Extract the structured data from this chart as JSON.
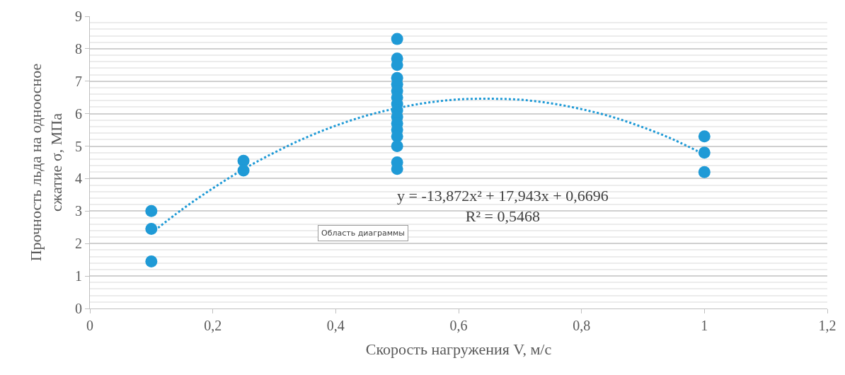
{
  "chart_data": {
    "type": "scatter",
    "xlabel": "Скорость нагружения V, м/с",
    "ylabel": "Прочность льда на одноосное\nсжатие σ, МПа",
    "xlim": [
      0,
      1.2
    ],
    "xticks": [
      {
        "value": 0,
        "label": "0"
      },
      {
        "value": 0.2,
        "label": "0,2"
      },
      {
        "value": 0.4,
        "label": "0,4"
      },
      {
        "value": 0.6,
        "label": "0,6"
      },
      {
        "value": 0.8,
        "label": "0,8"
      },
      {
        "value": 1,
        "label": "1"
      },
      {
        "value": 1.2,
        "label": "1,2"
      }
    ],
    "ylim": [
      0,
      9
    ],
    "yticks": [
      0,
      1,
      2,
      3,
      4,
      5,
      6,
      7,
      8,
      9
    ],
    "grid": "y",
    "marker": "circle",
    "series": [
      {
        "color": "#1f9ad6",
        "x": [
          0.1,
          0.1,
          0.1,
          0.25,
          0.25,
          0.5,
          0.5,
          0.5,
          0.5,
          0.5,
          0.5,
          0.5,
          0.5,
          0.5,
          0.5,
          0.5,
          0.5,
          0.5,
          0.5,
          0.5,
          0.5,
          1,
          1,
          1
        ],
        "values": [
          3.0,
          2.45,
          1.45,
          4.55,
          4.25,
          8.3,
          7.7,
          7.5,
          7.1,
          6.9,
          6.7,
          6.5,
          6.3,
          6.1,
          5.9,
          5.7,
          5.5,
          5.3,
          5.0,
          4.5,
          4.3,
          5.3,
          4.8,
          4.2
        ]
      },
      {
        "type": "line",
        "color": "#1f9ad6",
        "line_style": "dotted",
        "marker": "none",
        "x": [
          0.1,
          0.15,
          0.2,
          0.25,
          0.3,
          0.35,
          0.4,
          0.45,
          0.5,
          0.55,
          0.6,
          0.65,
          0.7,
          0.75,
          0.8,
          0.85,
          0.9,
          0.95,
          1.0
        ],
        "values": [
          2.32,
          3.05,
          3.7,
          4.29,
          4.8,
          5.25,
          5.63,
          5.94,
          6.17,
          6.34,
          6.44,
          6.46,
          6.43,
          6.32,
          6.14,
          5.9,
          5.58,
          5.2,
          4.74
        ]
      }
    ],
    "annotations": [
      "y = -13,872x² + 17,943x + 0,6696\nR² = 0,5468",
      "Область диаграммы"
    ]
  }
}
